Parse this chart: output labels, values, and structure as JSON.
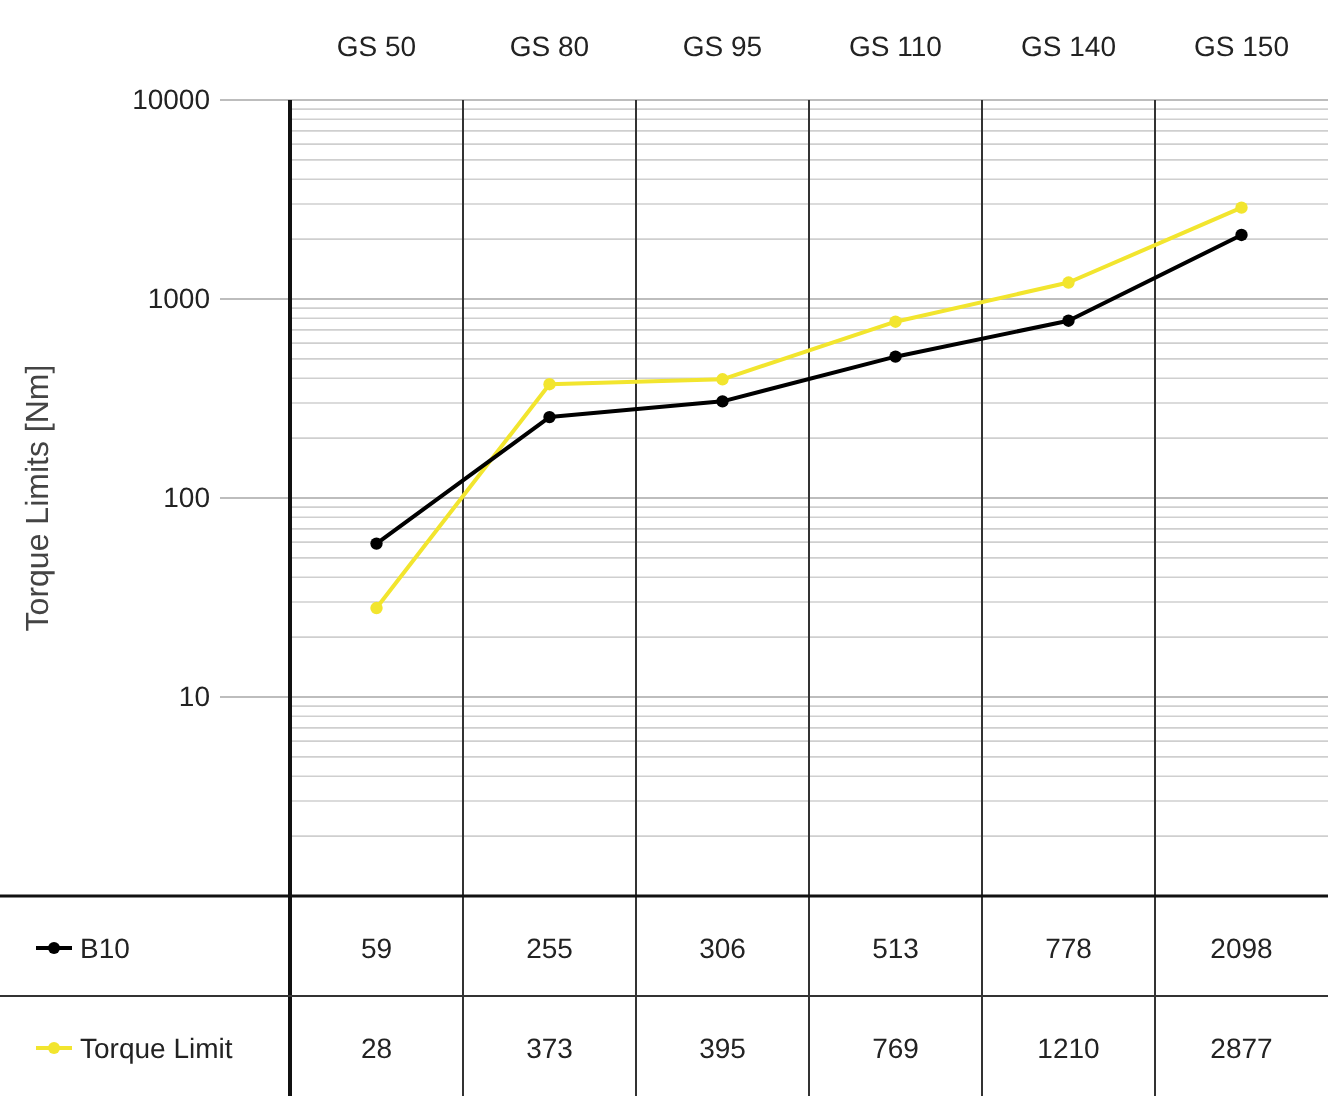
{
  "chart_data": {
    "type": "line",
    "ylabel": "Torque Limits [Nm]",
    "categories": [
      "GS 50",
      "GS 80",
      "GS 95",
      "GS 110",
      "GS 140",
      "GS 150"
    ],
    "series": [
      {
        "name": "B10",
        "color": "#000000",
        "values": [
          59,
          255,
          306,
          513,
          778,
          2098
        ]
      },
      {
        "name": "Torque Limit",
        "color": "#f2e52e",
        "values": [
          28,
          373,
          395,
          769,
          1210,
          2877
        ]
      }
    ],
    "log": true,
    "ylim": [
      1,
      10000
    ],
    "yticks": [
      {
        "value": 1,
        "label": null
      },
      10,
      100,
      1000,
      10000
    ],
    "grid": true,
    "marker": "circle",
    "line_style": "solid",
    "legend": "bottom",
    "data_labels": true
  }
}
